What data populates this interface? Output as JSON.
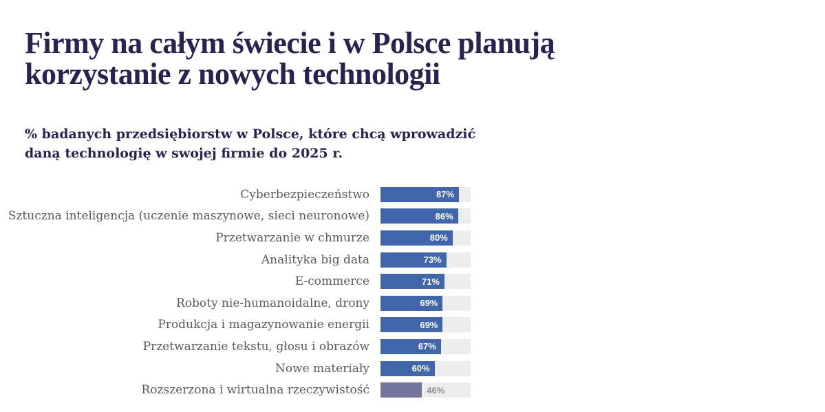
{
  "header": {
    "title_lines": [
      "Firmy na całym świecie i w Polsce planują",
      "korzystanie z nowych technologii"
    ],
    "subtitle_lines": [
      "% badanych przedsiębiorstw w Polsce, które chcą wprowadzić",
      "daną technologię w swojej firmie do 2025 r."
    ]
  },
  "theme": {
    "title_color": "#272451",
    "category_label_color": "#5a5a5c",
    "bar_color": "#4166a9",
    "highlight_bar_color": "#73759b",
    "track_color": "#ededed",
    "value_label_inside_color": "#ffffff",
    "value_label_outside_color": "#8e8e99",
    "background_color": "#ffffff"
  },
  "chart_data": {
    "type": "bar",
    "orientation": "horizontal",
    "title": "Firmy na całym świecie i w Polsce planują korzystanie z nowych technologii",
    "subtitle": "% badanych przedsiębiorstw w Polsce, które chcą wprowadzić daną technologię w swojej firmie do 2025 r.",
    "categories": [
      "Cyberbezpieczeństwo",
      "Sztuczna inteligencja (uczenie maszynowe, sieci neuronowe)",
      "Przetwarzanie w chmurze",
      "Analityka big data",
      "E-commerce",
      "Roboty nie-humanoidalne, drony",
      "Produkcja i magazynowanie energii",
      "Przetwarzanie tekstu, głosu i obrazów",
      "Nowe materiały",
      "Rozszerzona i wirtualna rzeczywistość"
    ],
    "values": [
      87,
      86,
      80,
      73,
      71,
      69,
      69,
      67,
      60,
      46
    ],
    "value_suffix": "%",
    "xlim": [
      0,
      100
    ],
    "grid": false,
    "legend": false,
    "highlight_index": 9,
    "value_label_outside_indices": [
      9
    ],
    "xlabel": "",
    "ylabel": ""
  }
}
